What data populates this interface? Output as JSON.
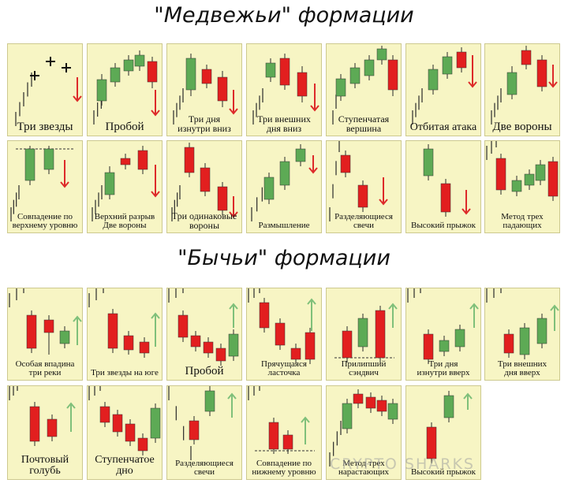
{
  "colors": {
    "bull": "#5daa55",
    "bear": "#e21f1f",
    "wick": "#2a2a2a",
    "arrow_up": "#7fc07a",
    "arrow_down": "#dd2a2a",
    "card_bg": "#f7f5c4"
  },
  "bearish_title": "\"Медвежьи\" формации",
  "bullish_title": "\"Бычьи\" формации",
  "watermark": "CRYPTO SHARKS",
  "bearish_patterns": [
    {
      "label": "Три звезды"
    },
    {
      "label": "Пробой"
    },
    {
      "label": "Три дня\nизнутри вниз"
    },
    {
      "label": "Три внешних\nдня вниз"
    },
    {
      "label": "Ступенчатая\nвершина"
    },
    {
      "label": "Отбитая атака"
    },
    {
      "label": "Две вороны"
    },
    {
      "label": "Совпадение по\nверхнему уровню"
    },
    {
      "label": "Верхний разрыв\nДве вороны"
    },
    {
      "label": "Три одинаковые\nвороны"
    },
    {
      "label": "Размышление"
    },
    {
      "label": "Разделяющиеся\nсвечи"
    },
    {
      "label": "Высокий прыжок"
    },
    {
      "label": "Метод трех\nпадающих"
    }
  ],
  "bullish_patterns": [
    {
      "label": "Особая впадина\nтри реки"
    },
    {
      "label": "Три звезды на юге"
    },
    {
      "label": "Пробой"
    },
    {
      "label": "Прячущаяся\nласточка"
    },
    {
      "label": "Прилипший\nсэндвич"
    },
    {
      "label": "Три дня\nизнутри вверх"
    },
    {
      "label": "Три внешних\nдня вверх"
    },
    {
      "label": "Почтовый\nголубь"
    },
    {
      "label": "Ступенчатое\nдно"
    },
    {
      "label": "Разделяющиеся\nсвечи"
    },
    {
      "label": "Совпадение по\nнижнему уровню"
    },
    {
      "label": "Метод трех\nнарастающих"
    },
    {
      "label": "Высокий прыжок"
    }
  ]
}
